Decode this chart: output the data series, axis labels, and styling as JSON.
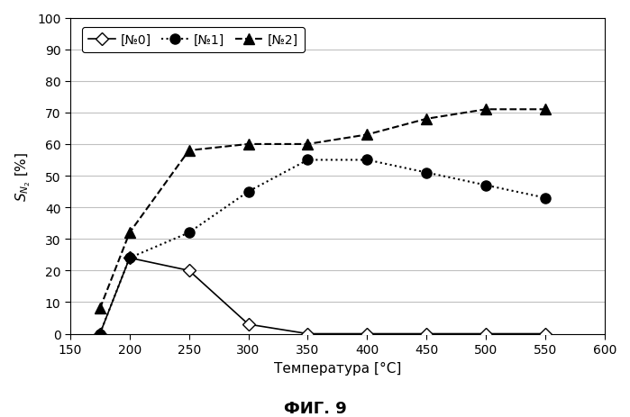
{
  "series": {
    "No0": {
      "x": [
        175,
        200,
        250,
        300,
        350,
        400,
        450,
        500,
        550
      ],
      "y": [
        0,
        24,
        20,
        3,
        0,
        0,
        0,
        0,
        0
      ],
      "label": "[№0]",
      "linestyle": "-",
      "marker": "D",
      "markersize": 7,
      "markerfacecolor": "white",
      "markeredgecolor": "black",
      "color": "black",
      "linewidth": 1.2
    },
    "No1": {
      "x": [
        175,
        200,
        250,
        300,
        350,
        400,
        450,
        500,
        550
      ],
      "y": [
        0,
        24,
        32,
        45,
        55,
        55,
        51,
        47,
        43
      ],
      "label": "[№1]",
      "linestyle": ":",
      "marker": "o",
      "markersize": 8,
      "markerfacecolor": "black",
      "markeredgecolor": "black",
      "color": "black",
      "linewidth": 1.5
    },
    "No2": {
      "x": [
        175,
        200,
        250,
        300,
        350,
        400,
        450,
        500,
        550
      ],
      "y": [
        8,
        32,
        58,
        60,
        60,
        63,
        68,
        71,
        71
      ],
      "label": "[№2]",
      "linestyle": "--",
      "marker": "^",
      "markersize": 8,
      "markerfacecolor": "black",
      "markeredgecolor": "black",
      "color": "black",
      "linewidth": 1.5
    }
  },
  "xlabel": "Температура [°C]",
  "ylabel": "$S_{N_2}$ [%]",
  "xlim": [
    150,
    600
  ],
  "ylim": [
    0,
    100
  ],
  "xticks": [
    150,
    200,
    250,
    300,
    350,
    400,
    450,
    500,
    550,
    600
  ],
  "yticks": [
    0,
    10,
    20,
    30,
    40,
    50,
    60,
    70,
    80,
    90,
    100
  ],
  "title_bottom": "ФИГ. 9",
  "grid_color": "#c0c0c0",
  "background_color": "#ffffff",
  "legend_loc": "upper left",
  "fig_width": 6.99,
  "fig_height": 4.64,
  "dpi": 100
}
